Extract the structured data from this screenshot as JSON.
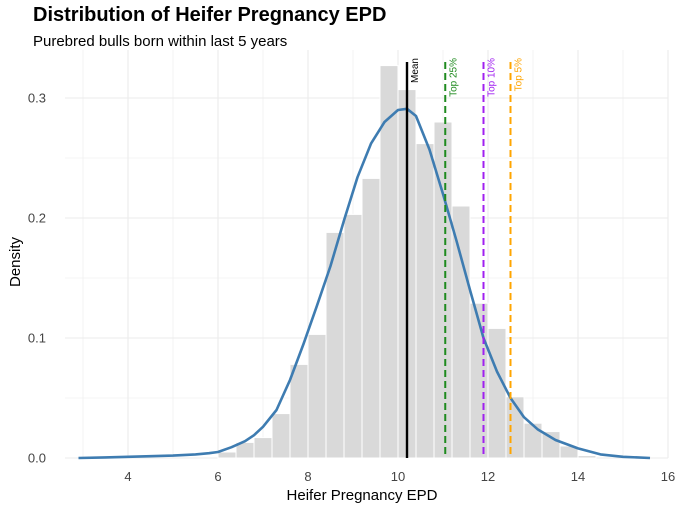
{
  "chart_data": {
    "type": "histogram",
    "title": "Distribution of Heifer Pregnancy EPD",
    "subtitle": "Purebred bulls born within last 5 years",
    "xlabel": "Heifer Pregnancy EPD",
    "ylabel": "Density",
    "xlim": [
      2.6,
      16.0
    ],
    "ylim": [
      0,
      0.34
    ],
    "x_ticks": [
      4,
      6,
      8,
      10,
      12,
      14,
      16
    ],
    "y_ticks": [
      0.0,
      0.1,
      0.2,
      0.3
    ],
    "x_tick_labels": [
      "4",
      "6",
      "8",
      "10",
      "12",
      "14",
      "16"
    ],
    "y_tick_labels": [
      "0.0",
      "0.1",
      "0.2",
      "0.3"
    ],
    "grid": true,
    "histogram": {
      "bin_width": 0.4,
      "color": "#d9d9d9",
      "bins": [
        {
          "start": 6.0,
          "density": 0.005
        },
        {
          "start": 6.4,
          "density": 0.013
        },
        {
          "start": 6.8,
          "density": 0.017
        },
        {
          "start": 7.2,
          "density": 0.037
        },
        {
          "start": 7.6,
          "density": 0.078
        },
        {
          "start": 8.0,
          "density": 0.103
        },
        {
          "start": 8.4,
          "density": 0.188
        },
        {
          "start": 8.8,
          "density": 0.203
        },
        {
          "start": 9.2,
          "density": 0.233
        },
        {
          "start": 9.6,
          "density": 0.327
        },
        {
          "start": 10.0,
          "density": 0.307
        },
        {
          "start": 10.4,
          "density": 0.262
        },
        {
          "start": 10.8,
          "density": 0.28
        },
        {
          "start": 11.2,
          "density": 0.21
        },
        {
          "start": 11.6,
          "density": 0.129
        },
        {
          "start": 12.0,
          "density": 0.108
        },
        {
          "start": 12.4,
          "density": 0.051
        },
        {
          "start": 12.8,
          "density": 0.029
        },
        {
          "start": 13.2,
          "density": 0.022
        },
        {
          "start": 13.6,
          "density": 0.01
        },
        {
          "start": 14.0,
          "density": 0.002
        }
      ]
    },
    "density_curve": {
      "color": "#3e7cb1",
      "points": [
        [
          2.9,
          0.0
        ],
        [
          3.5,
          0.0005
        ],
        [
          4.0,
          0.001
        ],
        [
          4.5,
          0.0015
        ],
        [
          5.0,
          0.002
        ],
        [
          5.5,
          0.003
        ],
        [
          5.8,
          0.004
        ],
        [
          6.0,
          0.005
        ],
        [
          6.3,
          0.009
        ],
        [
          6.6,
          0.014
        ],
        [
          6.8,
          0.019
        ],
        [
          7.0,
          0.026
        ],
        [
          7.3,
          0.04
        ],
        [
          7.6,
          0.065
        ],
        [
          7.9,
          0.095
        ],
        [
          8.2,
          0.127
        ],
        [
          8.5,
          0.16
        ],
        [
          8.8,
          0.198
        ],
        [
          9.1,
          0.234
        ],
        [
          9.4,
          0.262
        ],
        [
          9.7,
          0.28
        ],
        [
          10.0,
          0.29
        ],
        [
          10.2,
          0.291
        ],
        [
          10.4,
          0.285
        ],
        [
          10.7,
          0.257
        ],
        [
          11.0,
          0.22
        ],
        [
          11.3,
          0.181
        ],
        [
          11.6,
          0.14
        ],
        [
          11.9,
          0.1
        ],
        [
          12.2,
          0.072
        ],
        [
          12.5,
          0.05
        ],
        [
          12.8,
          0.034
        ],
        [
          13.1,
          0.024
        ],
        [
          13.5,
          0.015
        ],
        [
          14.0,
          0.008
        ],
        [
          14.5,
          0.003
        ],
        [
          15.0,
          0.001
        ],
        [
          15.6,
          0.0
        ]
      ]
    },
    "reference_lines": [
      {
        "label": "Mean",
        "x": 10.2,
        "color": "#000000",
        "style": "solid"
      },
      {
        "label": "Top 25%",
        "x": 11.05,
        "color": "#1e8a1e",
        "style": "dashed"
      },
      {
        "label": "Top 10%",
        "x": 11.9,
        "color": "#a020f0",
        "style": "dashed"
      },
      {
        "label": "Top 5%",
        "x": 12.5,
        "color": "#ffa500",
        "style": "dashed"
      }
    ]
  }
}
